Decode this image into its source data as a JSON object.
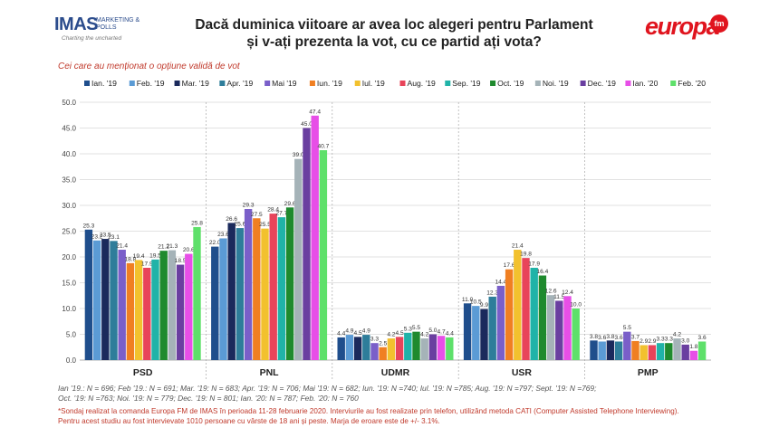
{
  "header": {
    "title_line1": "Dacă duminica viitoare ar avea loc alegeri pentru Parlament",
    "title_line2": "și v-ați prezenta la vot, cu ce partid ați vota?",
    "imas_logo_text": "IMAS",
    "imas_logo_sub": "MARKETING & POLLS",
    "imas_logo_tagline": "Charting the uncharted",
    "europa_logo_text": "europa",
    "europa_logo_fm": "fm"
  },
  "subtitle": "Cei care au menționat o opțiune validă de vot",
  "colors": {
    "series": [
      "#1f4e8c",
      "#5b9bd5",
      "#1b2a5c",
      "#2e7d9a",
      "#7a5fc9",
      "#f07f22",
      "#f2c12e",
      "#e8445a",
      "#20b3a8",
      "#1f8a2e",
      "#a5b3b8",
      "#6a3fa0",
      "#e74fe7",
      "#5ee06a"
    ]
  },
  "chart_data": {
    "type": "bar",
    "categories": [
      "PSD",
      "PNL",
      "UDMR",
      "USR",
      "PMP"
    ],
    "ylim": [
      0,
      50
    ],
    "yticks": [
      "0.0",
      "5.0",
      "10.0",
      "15.0",
      "20.0",
      "25.0",
      "30.0",
      "35.0",
      "40.0",
      "45.0",
      "50.0"
    ],
    "grid": true,
    "legend_position": "top",
    "series": [
      {
        "name": "Ian. '19",
        "values": [
          25.3,
          22.0,
          4.4,
          11.0,
          3.8
        ]
      },
      {
        "name": "Feb. '19",
        "values": [
          23.2,
          23.6,
          4.9,
          10.5,
          3.6
        ]
      },
      {
        "name": "Mar. '19",
        "values": [
          23.5,
          26.6,
          4.5,
          9.9,
          3.8
        ]
      },
      {
        "name": "Apr. '19",
        "values": [
          23.1,
          25.6,
          4.9,
          12.3,
          3.6
        ]
      },
      {
        "name": "Mai '19",
        "values": [
          21.4,
          29.3,
          3.3,
          14.4,
          5.5
        ]
      },
      {
        "name": "Iun. '19",
        "values": [
          18.8,
          27.5,
          2.5,
          17.6,
          3.7
        ]
      },
      {
        "name": "Iul. '19",
        "values": [
          19.4,
          25.5,
          4.2,
          21.4,
          2.9
        ]
      },
      {
        "name": "Aug. '19",
        "values": [
          17.9,
          28.4,
          4.5,
          19.8,
          2.9
        ]
      },
      {
        "name": "Sep. '19",
        "values": [
          19.5,
          27.7,
          5.3,
          17.9,
          3.3
        ]
      },
      {
        "name": "Oct. '19",
        "values": [
          21.2,
          29.6,
          5.5,
          16.4,
          3.3
        ]
      },
      {
        "name": "Noi. '19",
        "values": [
          21.3,
          39.0,
          4.2,
          12.6,
          4.2
        ]
      },
      {
        "name": "Dec. '19",
        "values": [
          18.5,
          45.0,
          5.0,
          11.5,
          3.0
        ]
      },
      {
        "name": "Ian. '20",
        "values": [
          20.6,
          47.4,
          4.7,
          12.4,
          1.8
        ]
      },
      {
        "name": "Feb. '20",
        "values": [
          25.8,
          40.7,
          4.4,
          10.0,
          3.6
        ]
      }
    ],
    "data_labels": [
      [
        "25.3",
        "23.2",
        "23.5",
        "23.1",
        "21.4",
        "18.8",
        "19.4",
        "17.9",
        "19.5",
        "21.2",
        "21.3",
        "18.5",
        "20.6",
        "25.8"
      ],
      [
        "22.0",
        "23.6",
        "26.6",
        "25.6",
        "29.3",
        "27.5",
        "25.5",
        "28.4",
        "27.7",
        "29.6",
        "39.0",
        "45.0",
        "47.4",
        "40.7"
      ],
      [
        "4.4",
        "4.9",
        "4.5",
        "4.9",
        "3.3",
        "2.5",
        "4.2",
        "4.5",
        "5.3",
        "5.5",
        "4.2",
        "5.0",
        "4.7",
        "4.4"
      ],
      [
        "11.0",
        "10.5",
        "9.9",
        "12.3",
        "14.4",
        "17.6",
        "21.4",
        "19.8",
        "17.9",
        "16.4",
        "12.6",
        "11.5",
        "12.4",
        "10.0"
      ],
      [
        "3.8",
        "3.6",
        "3.8",
        "3.6",
        "5.5",
        "3.7",
        "2.9",
        "2.9",
        "3.3",
        "3.3",
        "4.2",
        "3.0",
        "1.8",
        "3.6"
      ]
    ]
  },
  "footnotes": {
    "sample_line1": "Ian '19.: N = 696; Feb '19.: N = 691; Mar. '19: N = 683; Apr. '19: N = 706; Mai '19: N = 682; Iun. '19: N =740; Iul. '19: N =785; Aug. '19: N =797; Sept. '19: N =769;",
    "sample_line2": "Oct. '19: N =763; Noi. '19: N = 779; Dec. '19: N = 801; Ian. '20: N = 787; Feb. '20: N = 760",
    "method_line1": "*Sondaj realizat la comanda Europa FM de IMAS în perioada 11-28 februarie 2020. Interviurile au fost realizate prin telefon, utilizând metoda CATI (Computer Assisted Telephone Interviewing).",
    "method_line2": "Pentru acest studiu au fost intervievate 1010 persoane cu vârste de 18 ani și peste. Marja de eroare este de +/- 3.1%."
  }
}
